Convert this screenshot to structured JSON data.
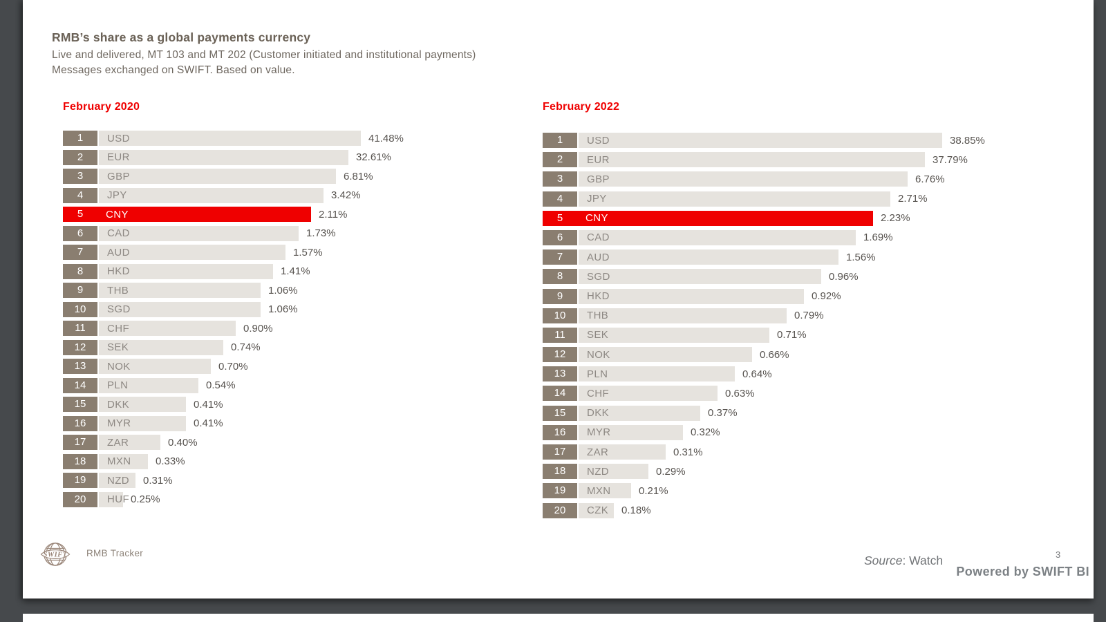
{
  "slide": {
    "title": "RMB’s share as a global payments currency",
    "subtitle_lines": [
      "Live and delivered,  MT 103 and MT 202 (Customer initiated and institutional payments)",
      "Messages exchanged on SWIFT. Based on value."
    ],
    "footer": {
      "logo_icon": "swift-globe-logo",
      "logo_word": "SWIFT",
      "tracker_label": "RMB Tracker",
      "source_prefix": "Source",
      "source_value": ": Watch",
      "page_number": "3",
      "powered_by": "Powered by SWIFT BI"
    },
    "colors": {
      "accent_red": "#ef0000",
      "rank_box": "#8a7e70",
      "bar_fill": "#e6e3de",
      "title_text": "#6a6156",
      "value_text": "#57534f",
      "label_text": "#8d8883"
    }
  },
  "chart_data": [
    {
      "type": "bar",
      "orientation": "horizontal",
      "title": "February 2020",
      "value_unit": "%",
      "value_format": "0.00%",
      "highlight_category": "CNY",
      "highlight_color": "#ef0000",
      "layout_note": "bar length scales by rank (equal values share equal length), values shown as data labels",
      "ranks": [
        1,
        2,
        3,
        4,
        5,
        6,
        7,
        8,
        9,
        10,
        11,
        12,
        13,
        14,
        15,
        16,
        17,
        18,
        19,
        20
      ],
      "categories": [
        "USD",
        "EUR",
        "GBP",
        "JPY",
        "CNY",
        "CAD",
        "AUD",
        "HKD",
        "THB",
        "SGD",
        "CHF",
        "SEK",
        "NOK",
        "PLN",
        "DKK",
        "MYR",
        "ZAR",
        "MXN",
        "NZD",
        "HUF"
      ],
      "values": [
        41.48,
        32.61,
        6.81,
        3.42,
        2.11,
        1.73,
        1.57,
        1.41,
        1.06,
        1.06,
        0.9,
        0.74,
        0.7,
        0.54,
        0.41,
        0.41,
        0.4,
        0.33,
        0.31,
        0.25
      ],
      "labels": [
        "41.48%",
        "32.61%",
        "6.81%",
        "3.42%",
        "2.11%",
        "1.73%",
        "1.57%",
        "1.41%",
        "1.06%",
        "1.06%",
        "0.90%",
        "0.74%",
        "0.70%",
        "0.54%",
        "0.41%",
        "0.41%",
        "0.40%",
        "0.33%",
        "0.31%",
        "0.25%"
      ]
    },
    {
      "type": "bar",
      "orientation": "horizontal",
      "title": "February 2022",
      "value_unit": "%",
      "value_format": "0.00%",
      "highlight_category": "CNY",
      "highlight_color": "#ef0000",
      "layout_note": "bar length scales by rank (equal values share equal length), values shown as data labels",
      "ranks": [
        1,
        2,
        3,
        4,
        5,
        6,
        7,
        8,
        9,
        10,
        11,
        12,
        13,
        14,
        15,
        16,
        17,
        18,
        19,
        20
      ],
      "categories": [
        "USD",
        "EUR",
        "GBP",
        "JPY",
        "CNY",
        "CAD",
        "AUD",
        "SGD",
        "HKD",
        "THB",
        "SEK",
        "NOK",
        "PLN",
        "CHF",
        "DKK",
        "MYR",
        "ZAR",
        "NZD",
        "MXN",
        "CZK"
      ],
      "values": [
        38.85,
        37.79,
        6.76,
        2.71,
        2.23,
        1.69,
        1.56,
        0.96,
        0.92,
        0.79,
        0.71,
        0.66,
        0.64,
        0.63,
        0.37,
        0.32,
        0.31,
        0.29,
        0.21,
        0.18
      ],
      "labels": [
        "38.85%",
        "37.79%",
        "6.76%",
        "2.71%",
        "2.23%",
        "1.69%",
        "1.56%",
        "0.96%",
        "0.92%",
        "0.79%",
        "0.71%",
        "0.66%",
        "0.64%",
        "0.63%",
        "0.37%",
        "0.32%",
        "0.31%",
        "0.29%",
        "0.21%",
        "0.18%"
      ]
    }
  ]
}
